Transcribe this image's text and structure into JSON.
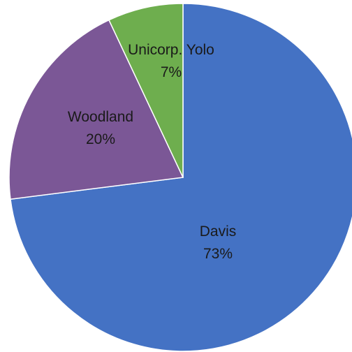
{
  "chart_data": {
    "type": "pie",
    "categories": [
      "Davis",
      "Woodland",
      "Unicorp. Yolo"
    ],
    "values": [
      73,
      20,
      7
    ],
    "value_labels": [
      "73%",
      "20%",
      "7%"
    ],
    "colors": [
      "#4472C4",
      "#7B5796",
      "#6EAE4E"
    ],
    "start_angle": "12 o'clock",
    "direction": "clockwise",
    "legend": "none",
    "title": ""
  }
}
